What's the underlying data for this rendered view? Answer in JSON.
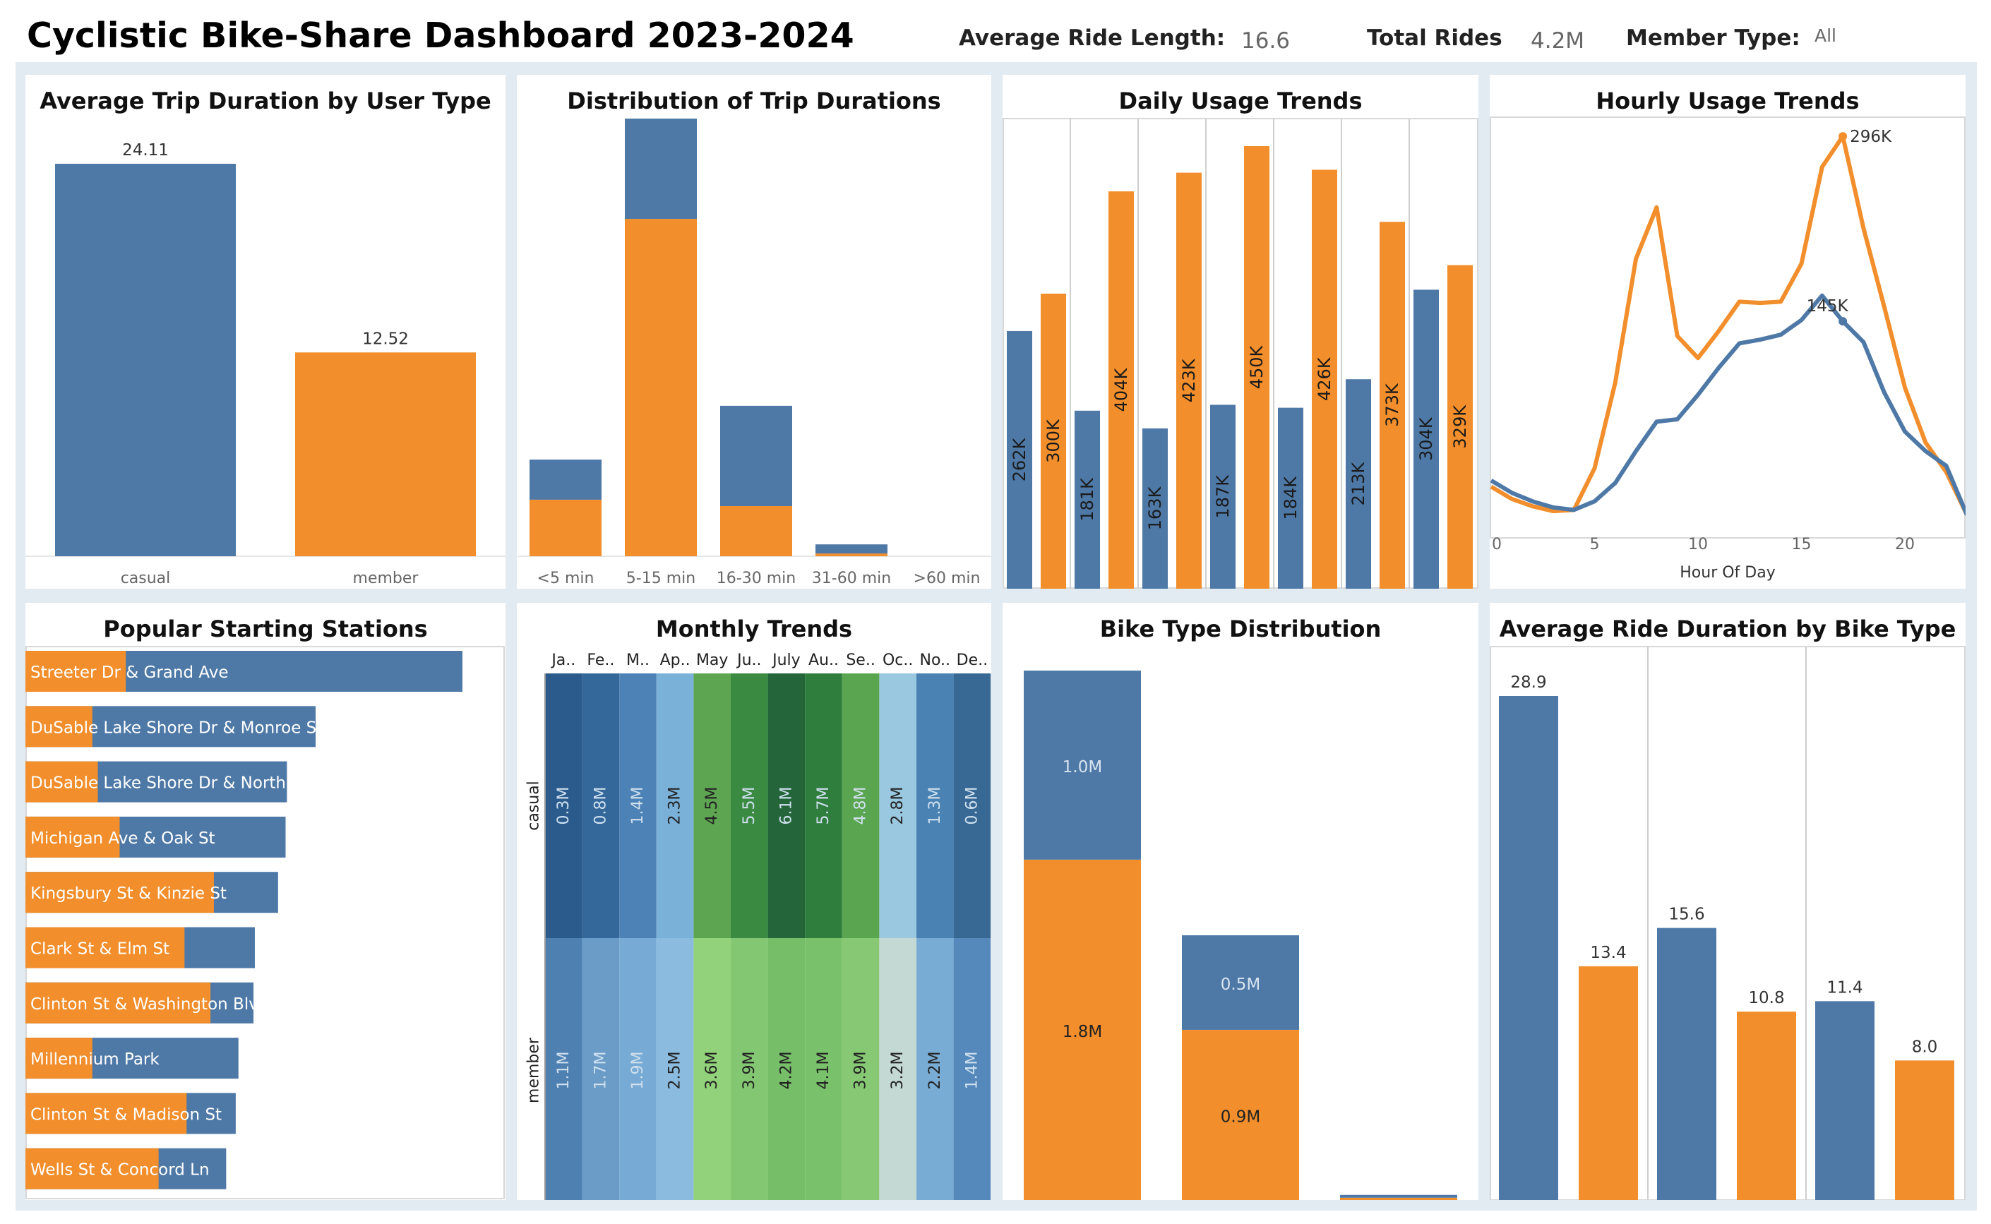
{
  "header": {
    "title": "Cyclistic Bike-Share Dashboard 2023-2024",
    "avg_ride_label": "Average Ride Length:",
    "avg_ride_value": "16.6",
    "total_rides_label": "Total Rides",
    "total_rides_value": "4.2M",
    "member_type_label": "Member Type:",
    "member_type_value": "All"
  },
  "colors": {
    "casual": "#4e79a7",
    "member": "#f28e2b",
    "frame": "#e2ebf1"
  },
  "panels": {
    "p1": "Average Trip Duration by User Type",
    "p2": "Distribution of Trip Durations",
    "p3": "Daily Usage Trends",
    "p4": "Hourly Usage Trends",
    "p5": "Popular Starting Stations",
    "p6": "Monthly Trends",
    "p7": "Bike Type Distribution",
    "p8": "Average Ride Duration by Bike Type"
  },
  "chart_data": [
    {
      "id": "avg_trip",
      "type": "bar",
      "title": "Average Trip Duration by User Type",
      "categories": [
        "casual",
        "member"
      ],
      "values": [
        24.11,
        12.52
      ],
      "labels": [
        "24.11",
        "12.52"
      ],
      "ylim": [
        0,
        24.11
      ]
    },
    {
      "id": "dist",
      "type": "bar",
      "stacked": true,
      "title": "Distribution of Trip Durations",
      "categories": [
        "<5 min",
        "5-15 min",
        "16-30 min",
        "31-60 min",
        ">60 min"
      ],
      "series": [
        {
          "key": "member",
          "values": [
            0.62,
            3.7,
            0.55,
            0.03,
            0
          ]
        },
        {
          "key": "casual",
          "values": [
            0.44,
            1.1,
            1.1,
            0.1,
            0
          ]
        }
      ],
      "ylim": [
        0,
        4.8
      ]
    },
    {
      "id": "daily",
      "type": "bar",
      "title": "Daily Usage Trends",
      "pairs": [
        {
          "casual": 262,
          "member": 300,
          "casual_label": "262K",
          "member_label": "300K"
        },
        {
          "casual": 181,
          "member": 404,
          "casual_label": "181K",
          "member_label": "404K"
        },
        {
          "casual": 163,
          "member": 423,
          "casual_label": "163K",
          "member_label": "423K"
        },
        {
          "casual": 187,
          "member": 450,
          "casual_label": "187K",
          "member_label": "450K"
        },
        {
          "casual": 184,
          "member": 426,
          "casual_label": "184K",
          "member_label": "426K"
        },
        {
          "casual": 213,
          "member": 373,
          "casual_label": "213K",
          "member_label": "373K"
        },
        {
          "casual": 304,
          "member": 329,
          "casual_label": "304K",
          "member_label": "329K"
        }
      ],
      "ylim": [
        0,
        478
      ]
    },
    {
      "id": "hourly",
      "type": "line",
      "title": "Hourly Usage Trends",
      "xlabel": "Hour Of Day",
      "xticks": [
        "0",
        "5",
        "10",
        "15",
        "20"
      ],
      "x": [
        0,
        1,
        2,
        3,
        4,
        5,
        6,
        7,
        8,
        9,
        10,
        11,
        12,
        13,
        14,
        15,
        16,
        17,
        18,
        19,
        20,
        21,
        22,
        23
      ],
      "series": [
        {
          "key": "member",
          "values": [
            10,
            0,
            -6,
            -10,
            -9,
            25,
            95,
            196,
            238,
            133,
            115,
            137,
            161,
            160,
            161,
            192,
            271,
            296,
            221,
            157,
            91,
            46,
            22,
            -13
          ],
          "peak_label": "296K",
          "peak_index": 17
        },
        {
          "key": "casual",
          "values": [
            15,
            5,
            -2,
            -7,
            -9,
            -2,
            13,
            39,
            63,
            65,
            85,
            107,
            127,
            130,
            134,
            146,
            166,
            145,
            128,
            87,
            55,
            39,
            27,
            -13
          ],
          "peak_label": "145K",
          "peak_index": 17
        }
      ],
      "ylim": [
        -18,
        322
      ]
    },
    {
      "id": "stations",
      "type": "bar",
      "orientation": "horizontal",
      "title": "Popular Starting Stations",
      "categories": [
        "Streeter Dr & Grand Ave",
        "DuSable Lake Shore Dr & Monroe St",
        "DuSable Lake Shore Dr & North Blvd",
        "Michigan Ave & Oak St",
        "Kingsbury St & Kinzie St",
        "Clark St & Elm St",
        "Clinton St & Washington Blvd",
        "Millennium Park",
        "Clinton St & Madison St",
        "Wells St & Concord Ln"
      ],
      "total": [
        64,
        42.5,
        38.3,
        38.1,
        37,
        33.6,
        33.4,
        31.2,
        30.8,
        29.4
      ],
      "member": [
        14.7,
        9.8,
        10.6,
        13.8,
        27.6,
        23.3,
        27.1,
        9.8,
        23.6,
        19.5
      ],
      "xlim": [
        0,
        67
      ]
    },
    {
      "id": "monthly",
      "type": "heatmap",
      "title": "Monthly Trends",
      "months": [
        "Ja..",
        "Fe..",
        "M..",
        "Ap..",
        "May",
        "Ju..",
        "July",
        "Au..",
        "Se..",
        "Oc..",
        "No..",
        "De.."
      ],
      "rows": [
        "casual",
        "member"
      ],
      "values": [
        [
          0.3,
          0.8,
          1.4,
          2.3,
          4.5,
          5.5,
          6.1,
          5.7,
          4.8,
          2.8,
          1.3,
          0.6
        ],
        [
          1.1,
          1.7,
          1.9,
          2.5,
          3.6,
          3.9,
          4.2,
          4.1,
          3.9,
          3.2,
          2.2,
          1.4
        ]
      ],
      "labels": [
        [
          "0.3M",
          "0.8M",
          "1.4M",
          "2.3M",
          "4.5M",
          "5.5M",
          "6.1M",
          "5.7M",
          "4.8M",
          "2.8M",
          "1.3M",
          "0.6M"
        ],
        [
          "1.1M",
          "1.7M",
          "1.9M",
          "2.5M",
          "3.6M",
          "3.9M",
          "4.2M",
          "4.1M",
          "3.9M",
          "3.2M",
          "2.2M",
          "1.4M"
        ]
      ],
      "cell_colors": [
        [
          "#2b5b8c",
          "#35689a",
          "#4c82b6",
          "#7ab1d8",
          "#5ea552",
          "#3a8a41",
          "#24663a",
          "#2f7e3e",
          "#5aa54f",
          "#9ac8e0",
          "#4a82b4",
          "#386894"
        ],
        [
          "#4e80b2",
          "#6b9cc7",
          "#77aad4",
          "#8bbbdf",
          "#91d27a",
          "#84c773",
          "#77be69",
          "#79c16b",
          "#86c873",
          "#c5d9d4",
          "#79acd5",
          "#5589bb"
        ]
      ],
      "label_colors": [
        [
          "#cfe0ef",
          "#cfe0ef",
          "#cfe0ef",
          "#222222",
          "#222222",
          "#cfe0ef",
          "#cfe0ef",
          "#cfe0ef",
          "#cfe0ef",
          "#222222",
          "#cfe0ef",
          "#cfe0ef"
        ],
        [
          "#cfe0ef",
          "#cfe0ef",
          "#cfe0ef",
          "#222222",
          "#222222",
          "#222222",
          "#222222",
          "#222222",
          "#222222",
          "#222222",
          "#222222",
          "#cfe0ef"
        ]
      ]
    },
    {
      "id": "biketype",
      "type": "bar",
      "stacked": true,
      "title": "Bike Type Distribution",
      "bars": [
        {
          "member": 1.8,
          "casual": 1.0,
          "member_label": "1.8M",
          "casual_label": "1.0M"
        },
        {
          "member": 0.9,
          "casual": 0.5,
          "member_label": "0.9M",
          "casual_label": "0.5M"
        },
        {
          "member": 0.012,
          "casual": 0.012,
          "member_label": "",
          "casual_label": ""
        }
      ],
      "ylim": [
        0,
        2.8
      ]
    },
    {
      "id": "bikedur",
      "type": "bar",
      "title": "Average Ride Duration by Bike Type",
      "groups": [
        {
          "casual": 28.9,
          "member": 13.4,
          "casual_label": "28.9",
          "member_label": "13.4"
        },
        {
          "casual": 15.6,
          "member": 10.8,
          "casual_label": "15.6",
          "member_label": "10.8"
        },
        {
          "casual": 11.4,
          "member": 8.0,
          "casual_label": "11.4",
          "member_label": "8.0"
        }
      ],
      "ylim": [
        0,
        28.9
      ]
    }
  ]
}
